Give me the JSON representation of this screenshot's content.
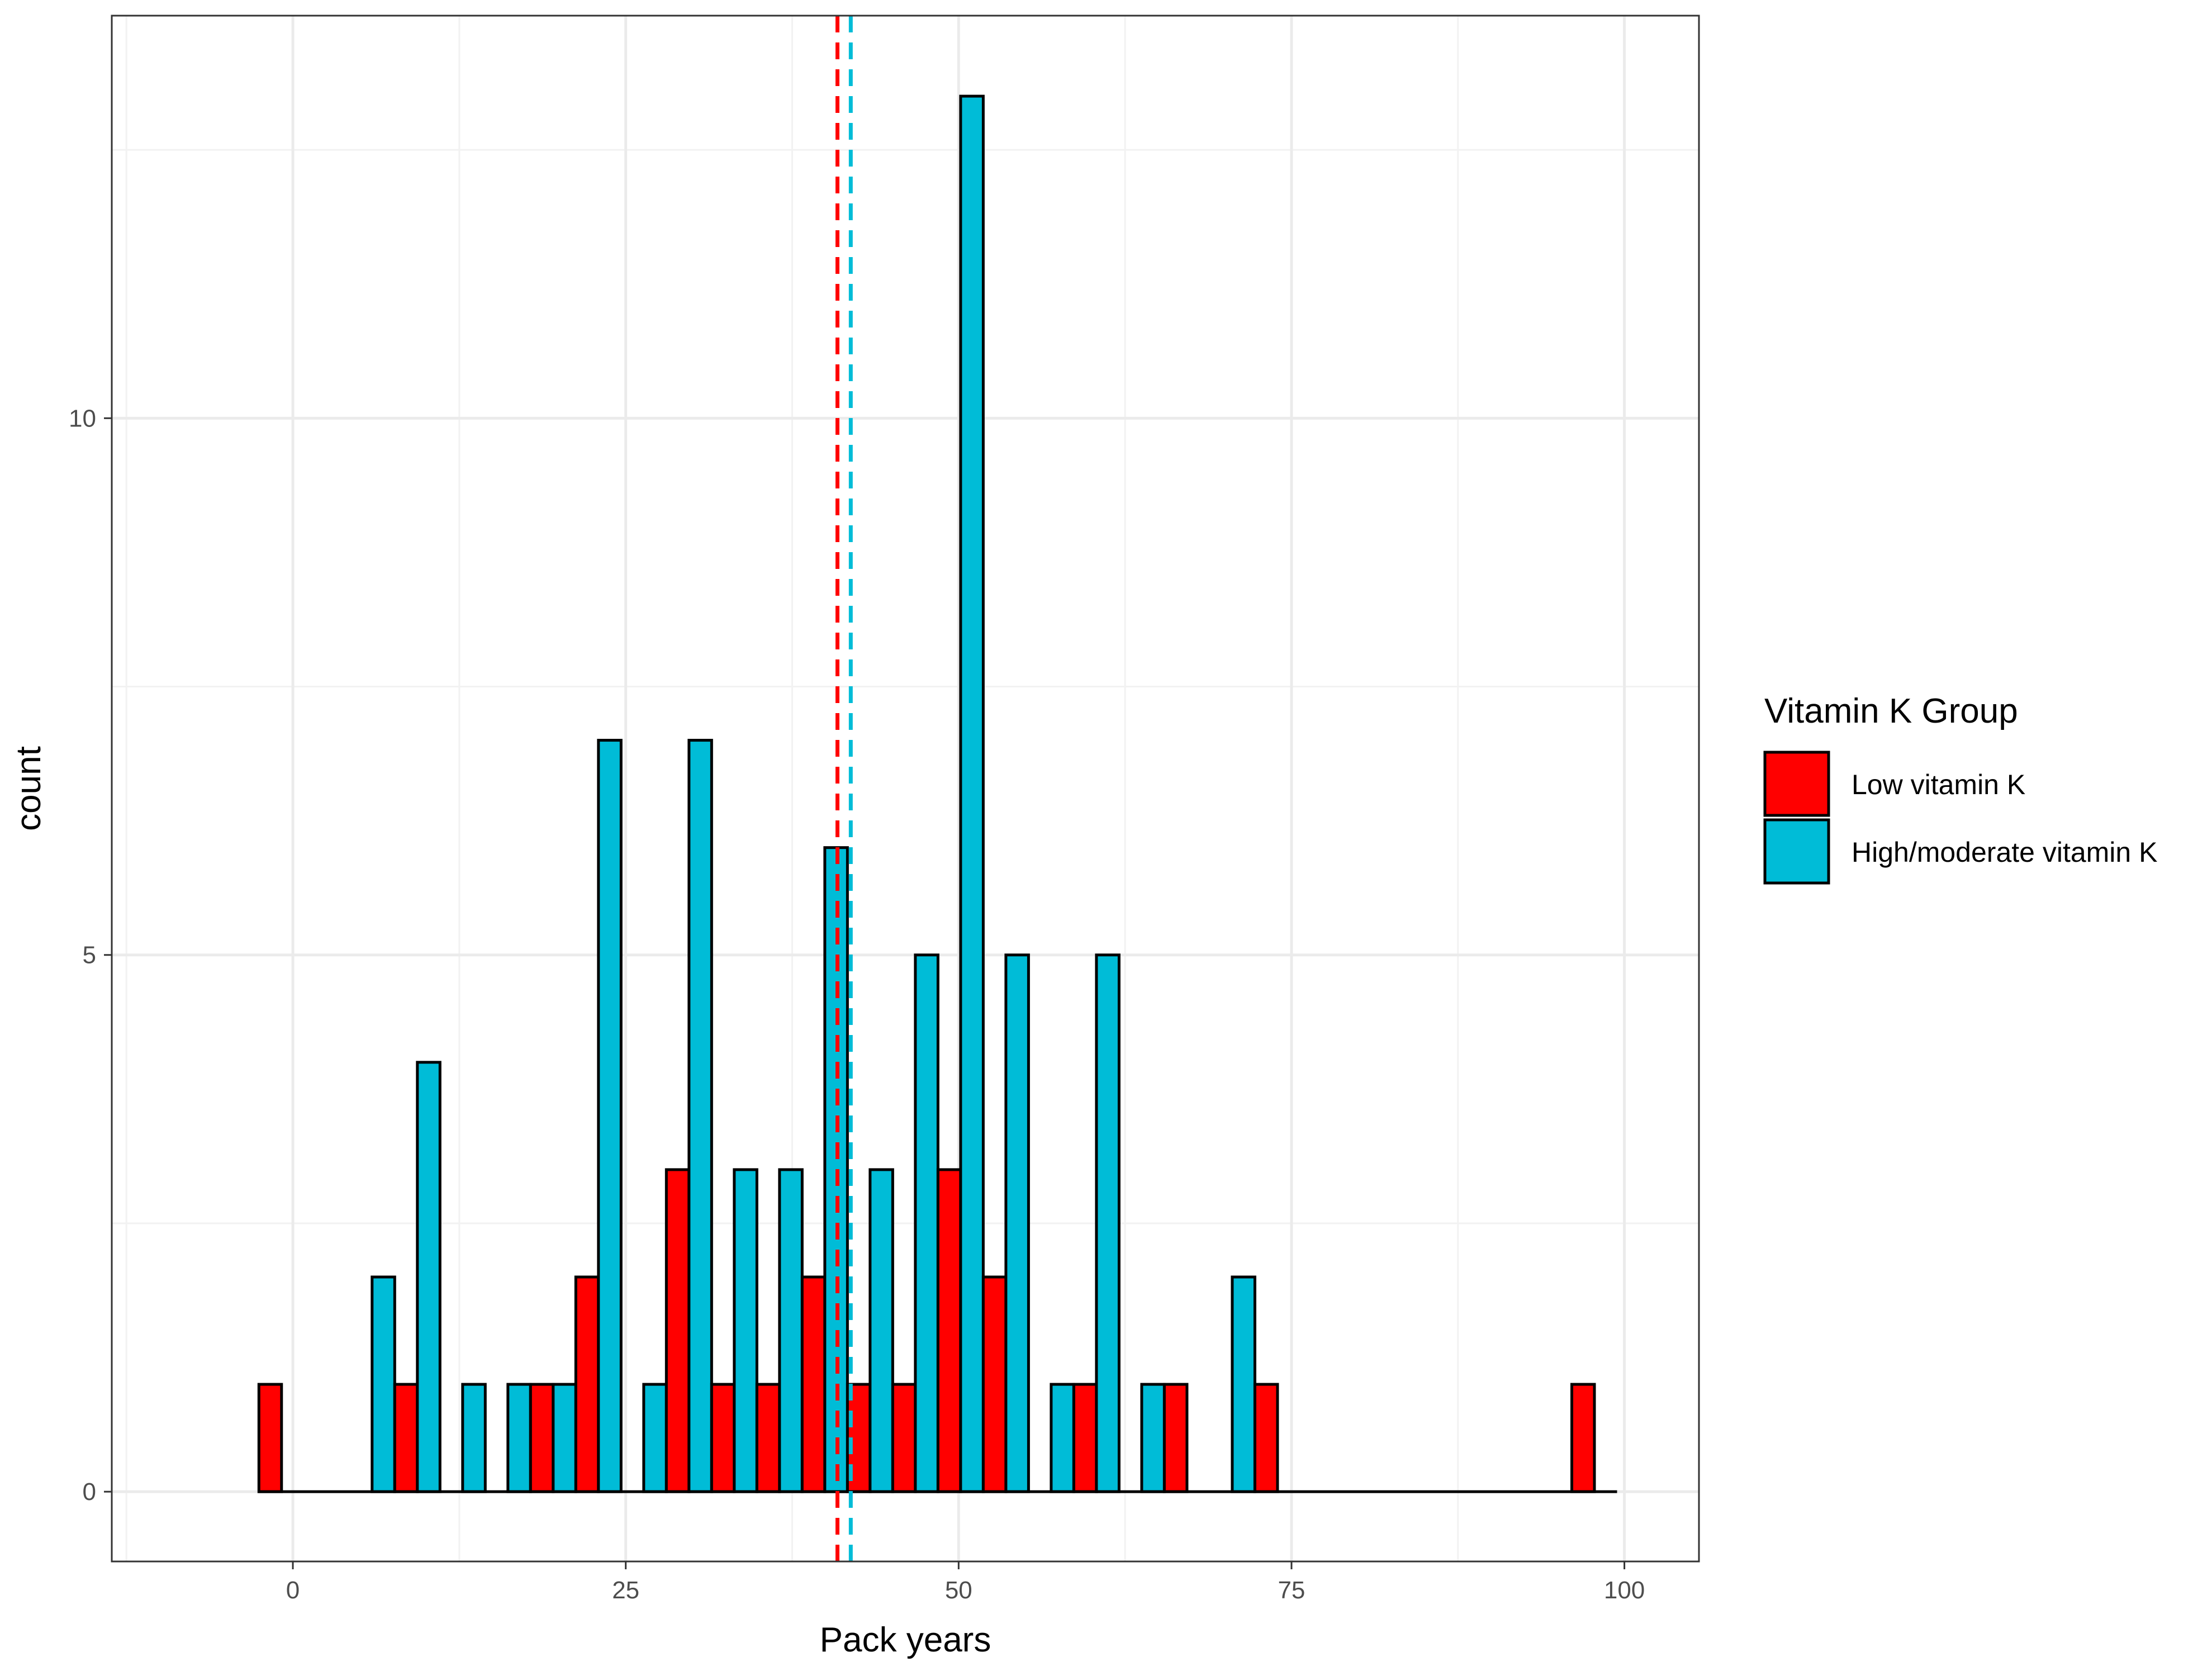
{
  "chart_data": {
    "type": "bar",
    "xlabel": "Pack years",
    "ylabel": "count",
    "xlim": [
      -13.6,
      105.6
    ],
    "ylim": [
      -0.65,
      13.75
    ],
    "x_ticks": [
      0,
      25,
      50,
      75,
      100
    ],
    "x_tick_labels": [
      "0",
      "25",
      "50",
      "75",
      "100"
    ],
    "y_ticks": [
      0,
      5,
      10
    ],
    "y_tick_labels": [
      "0",
      "5",
      "10"
    ],
    "bin_width": 3.4,
    "bin_centers": [
      -0.85,
      2.55,
      5.95,
      9.35,
      12.75,
      16.15,
      19.55,
      22.95,
      26.35,
      29.75,
      33.15,
      36.55,
      39.95,
      43.35,
      46.75,
      50.15,
      53.55,
      56.95,
      60.35,
      63.75,
      67.15,
      70.55,
      73.95,
      77.35,
      80.75,
      84.15,
      87.55,
      90.95,
      94.35,
      97.75
    ],
    "series": [
      {
        "name": "Low vitamin K",
        "color": "#ff0000",
        "values": [
          1,
          0,
          0,
          1,
          0,
          0,
          1,
          2,
          0,
          3,
          1,
          1,
          2,
          1,
          1,
          3,
          2,
          0,
          1,
          0,
          1,
          0,
          1,
          0,
          0,
          0,
          0,
          0,
          0,
          1
        ]
      },
      {
        "name": "High/moderate vitamin K",
        "color": "#00bcd7",
        "values": [
          0,
          0,
          2,
          4,
          1,
          1,
          1,
          7,
          1,
          7,
          3,
          3,
          6,
          3,
          5,
          13,
          5,
          1,
          5,
          1,
          0,
          2,
          0,
          0,
          0,
          0,
          0,
          0,
          0,
          0
        ]
      }
    ],
    "mean_lines": [
      {
        "name": "Low vitamin K mean",
        "x": 40.9,
        "color": "#ff0000"
      },
      {
        "name": "High/moderate vitamin K mean",
        "x": 41.9,
        "color": "#00bcd7"
      }
    ],
    "legend": {
      "title": "Vitamin K Group",
      "position": "right"
    },
    "grid": true,
    "theme": "bw"
  }
}
